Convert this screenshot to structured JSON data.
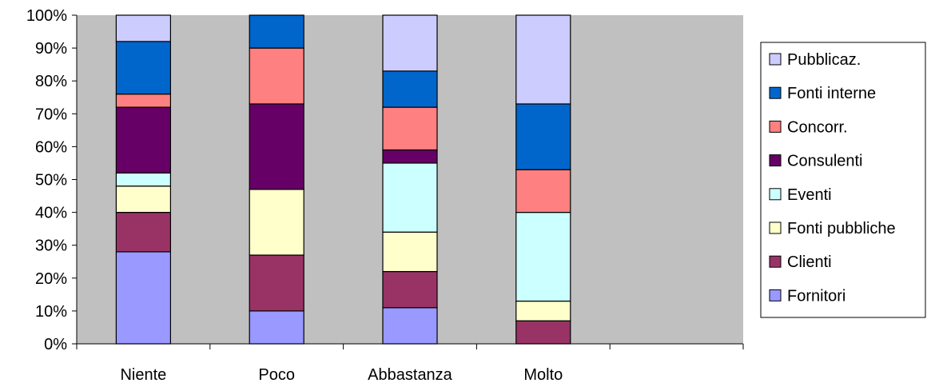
{
  "chart_data": {
    "type": "bar",
    "stacked": "percent",
    "title": "",
    "xlabel": "",
    "ylabel": "",
    "ylim": [
      0,
      100
    ],
    "y_ticks": [
      "0%",
      "10%",
      "20%",
      "30%",
      "40%",
      "50%",
      "60%",
      "70%",
      "80%",
      "90%",
      "100%"
    ],
    "categories": [
      "Niente",
      "Poco",
      "Abbastanza",
      "Molto"
    ],
    "legend_position": "right",
    "grid": false,
    "plot_background": "#c0c0c0",
    "series": [
      {
        "name": "Fornitori",
        "color": "#9999ff",
        "values": [
          28,
          10,
          11,
          0
        ]
      },
      {
        "name": "Clienti",
        "color": "#993366",
        "values": [
          12,
          17,
          11,
          7
        ]
      },
      {
        "name": "Fonti pubbliche",
        "color": "#ffffcc",
        "values": [
          8,
          20,
          12,
          6
        ]
      },
      {
        "name": "Eventi",
        "color": "#ccffff",
        "values": [
          4,
          0,
          21,
          27
        ]
      },
      {
        "name": "Consulenti",
        "color": "#660066",
        "values": [
          20,
          26,
          4,
          0
        ]
      },
      {
        "name": "Concorr.",
        "color": "#ff8080",
        "values": [
          4,
          17,
          13,
          13
        ]
      },
      {
        "name": "Fonti interne",
        "color": "#0066cc",
        "values": [
          16,
          10,
          11,
          20
        ]
      },
      {
        "name": "Pubblicaz.",
        "color": "#ccccff",
        "values": [
          8,
          0,
          17,
          27
        ]
      }
    ]
  }
}
